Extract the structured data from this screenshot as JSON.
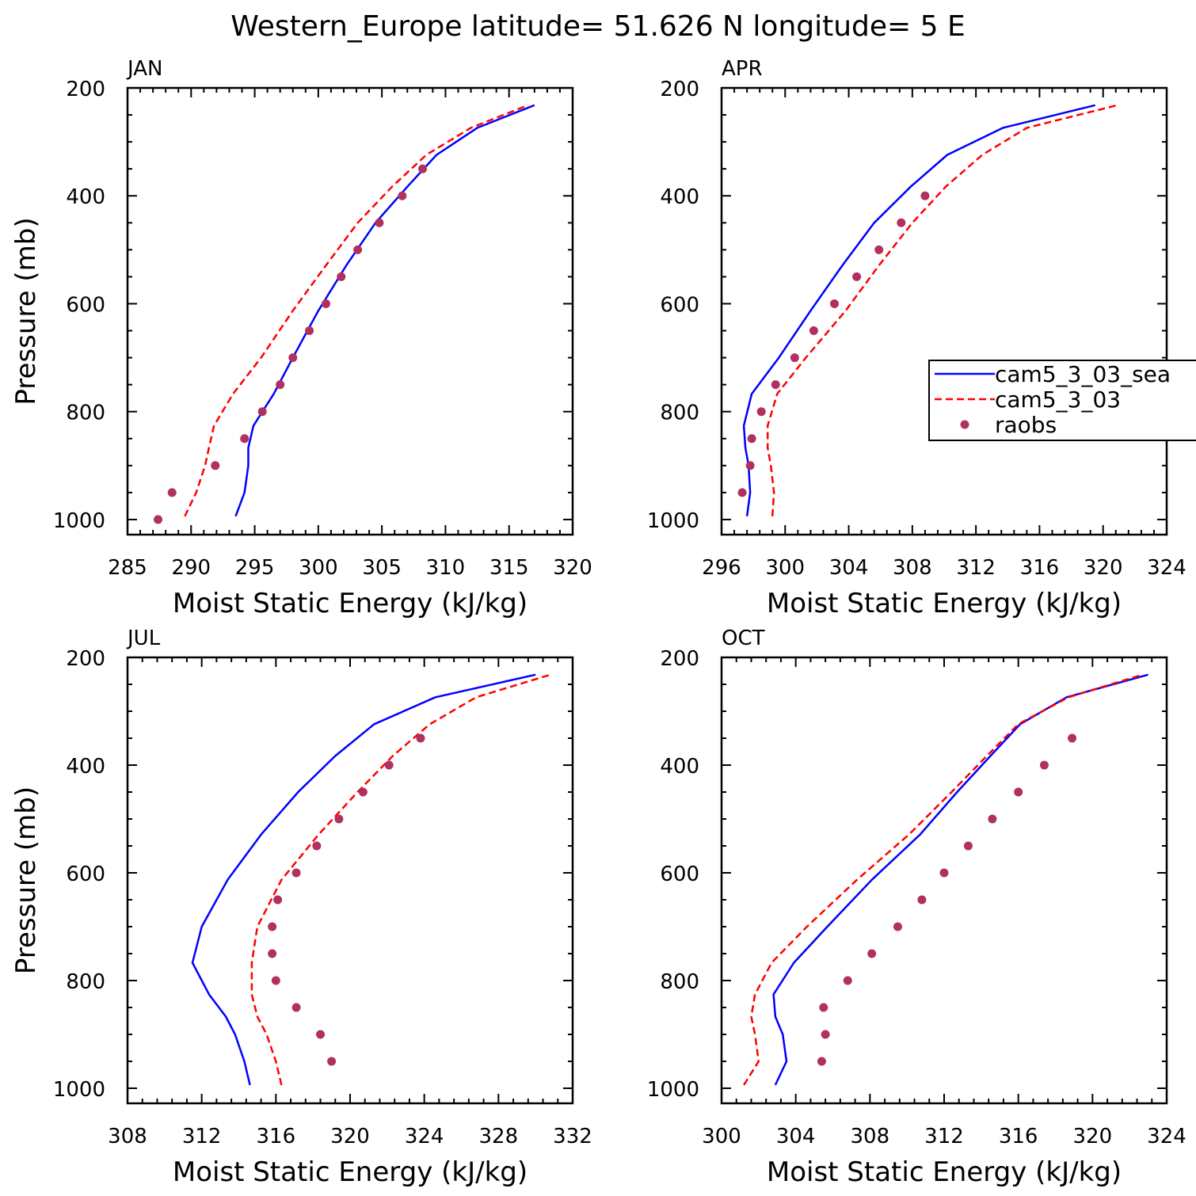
{
  "title": "Western_Europe  latitude= 51.626 N longitude= 5 E",
  "legend": {
    "entries": [
      {
        "label": "cam5_3_03_sea",
        "style": "solid",
        "color": "#0000ff"
      },
      {
        "label": "cam5_3_03",
        "style": "dashed",
        "color": "#ff0000"
      },
      {
        "label": "raobs",
        "style": "dot",
        "color": "#b03060"
      }
    ]
  },
  "colors": {
    "model_a": "#0000ff",
    "model_b": "#ff0000",
    "obs": "#b03060"
  },
  "chart_data": [
    {
      "type": "line",
      "panel": "JAN",
      "xlabel": "Moist Static Energy (kJ/kg)",
      "ylabel": "Pressure (mb)",
      "xlim": [
        285,
        320
      ],
      "ylim": [
        1000,
        200
      ],
      "xticks": [
        285,
        290,
        295,
        300,
        305,
        310,
        315,
        320
      ],
      "yticks": [
        200,
        400,
        600,
        800,
        1000
      ],
      "series": [
        {
          "name": "cam5_3_03_sea",
          "pressure": [
            994,
            950,
            900,
            867,
            826,
            767,
            700,
            613,
            529,
            450,
            383,
            324,
            274,
            232
          ],
          "values": [
            293.5,
            294.2,
            294.5,
            294.5,
            294.9,
            296.5,
            298.0,
            300.0,
            302.2,
            304.5,
            307.0,
            309.3,
            312.5,
            317.0
          ]
        },
        {
          "name": "cam5_3_03",
          "pressure": [
            994,
            950,
            900,
            867,
            826,
            767,
            700,
            613,
            529,
            450,
            383,
            324,
            274,
            232
          ],
          "values": [
            289.5,
            290.4,
            291.1,
            291.4,
            291.8,
            293.3,
            295.5,
            298.0,
            300.6,
            303.1,
            305.8,
            308.5,
            312.0,
            316.5
          ]
        },
        {
          "name": "raobs",
          "pressure": [
            1000,
            950,
            900,
            850,
            800,
            750,
            700,
            650,
            600,
            550,
            500,
            450,
            400,
            350
          ],
          "values": [
            287.4,
            288.5,
            291.9,
            294.2,
            295.6,
            297.0,
            298.0,
            299.3,
            300.6,
            301.8,
            303.1,
            304.8,
            306.6,
            308.2
          ]
        }
      ]
    },
    {
      "type": "line",
      "panel": "APR",
      "xlabel": "Moist Static Energy (kJ/kg)",
      "ylabel": "",
      "xlim": [
        296,
        324
      ],
      "ylim": [
        1000,
        200
      ],
      "xticks": [
        296,
        300,
        304,
        308,
        312,
        316,
        320,
        324
      ],
      "yticks": [
        200,
        400,
        600,
        800,
        1000
      ],
      "series": [
        {
          "name": "cam5_3_03_sea",
          "pressure": [
            994,
            950,
            900,
            867,
            826,
            767,
            700,
            613,
            529,
            450,
            383,
            324,
            274,
            232
          ],
          "values": [
            297.6,
            297.8,
            297.7,
            297.5,
            297.4,
            297.9,
            299.6,
            301.6,
            303.6,
            305.6,
            307.9,
            310.2,
            313.7,
            319.5
          ]
        },
        {
          "name": "cam5_3_03",
          "pressure": [
            994,
            950,
            900,
            867,
            826,
            767,
            700,
            613,
            529,
            450,
            383,
            324,
            274,
            232
          ],
          "values": [
            299.2,
            299.3,
            299.1,
            298.9,
            298.9,
            299.5,
            301.3,
            303.8,
            305.9,
            308.0,
            310.1,
            312.4,
            315.2,
            320.9
          ]
        },
        {
          "name": "raobs",
          "pressure": [
            950,
            900,
            850,
            800,
            750,
            700,
            650,
            600,
            550,
            500,
            450,
            400
          ],
          "values": [
            297.3,
            297.8,
            297.9,
            298.5,
            299.4,
            300.6,
            301.8,
            303.1,
            304.5,
            305.9,
            307.3,
            308.8
          ]
        }
      ]
    },
    {
      "type": "line",
      "panel": "JUL",
      "xlabel": "Moist Static Energy (kJ/kg)",
      "ylabel": "Pressure (mb)",
      "xlim": [
        308,
        332
      ],
      "ylim": [
        1000,
        200
      ],
      "xticks": [
        308,
        312,
        316,
        320,
        324,
        328,
        332
      ],
      "yticks": [
        200,
        400,
        600,
        800,
        1000
      ],
      "series": [
        {
          "name": "cam5_3_03_sea",
          "pressure": [
            994,
            950,
            900,
            867,
            826,
            767,
            700,
            613,
            529,
            450,
            383,
            324,
            274,
            232
          ],
          "values": [
            314.6,
            314.3,
            313.8,
            313.3,
            312.4,
            311.5,
            312.0,
            313.4,
            315.2,
            317.2,
            319.2,
            321.3,
            324.6,
            330.0
          ]
        },
        {
          "name": "cam5_3_03",
          "pressure": [
            994,
            950,
            900,
            867,
            826,
            767,
            700,
            613,
            529,
            450,
            383,
            324,
            274,
            232
          ],
          "values": [
            316.3,
            316.0,
            315.5,
            315.0,
            314.7,
            314.7,
            315.0,
            316.3,
            318.3,
            320.4,
            322.3,
            324.3,
            326.8,
            330.8
          ]
        },
        {
          "name": "raobs",
          "pressure": [
            950,
            900,
            850,
            800,
            750,
            700,
            650,
            600,
            550,
            500,
            450,
            400,
            350
          ],
          "values": [
            319.0,
            318.4,
            317.1,
            316.0,
            315.8,
            315.8,
            316.1,
            317.1,
            318.2,
            319.4,
            320.7,
            322.1,
            323.8
          ]
        }
      ]
    },
    {
      "type": "line",
      "panel": "OCT",
      "xlabel": "Moist Static Energy (kJ/kg)",
      "ylabel": "",
      "xlim": [
        300,
        324
      ],
      "ylim": [
        1000,
        200
      ],
      "xticks": [
        300,
        304,
        308,
        312,
        316,
        320,
        324
      ],
      "yticks": [
        200,
        400,
        600,
        800,
        1000
      ],
      "series": [
        {
          "name": "cam5_3_03_sea",
          "pressure": [
            994,
            950,
            900,
            867,
            826,
            767,
            700,
            613,
            529,
            450,
            383,
            324,
            274,
            232
          ],
          "values": [
            302.9,
            303.5,
            303.3,
            302.9,
            302.8,
            303.9,
            305.7,
            308.1,
            310.7,
            312.7,
            314.5,
            316.1,
            318.6,
            323.0
          ]
        },
        {
          "name": "cam5_3_03",
          "pressure": [
            994,
            950,
            900,
            867,
            826,
            767,
            700,
            613,
            529,
            450,
            383,
            324,
            274,
            232
          ],
          "values": [
            301.2,
            302.0,
            301.8,
            301.6,
            301.8,
            302.7,
            304.6,
            307.3,
            310.1,
            312.4,
            314.3,
            316.0,
            318.7,
            322.7
          ]
        },
        {
          "name": "raobs",
          "pressure": [
            950,
            900,
            850,
            800,
            750,
            700,
            650,
            600,
            550,
            500,
            450,
            400,
            350
          ],
          "values": [
            305.4,
            305.6,
            305.5,
            306.8,
            308.1,
            309.5,
            310.8,
            312.0,
            313.3,
            314.6,
            316.0,
            317.4,
            318.9
          ]
        }
      ]
    }
  ]
}
